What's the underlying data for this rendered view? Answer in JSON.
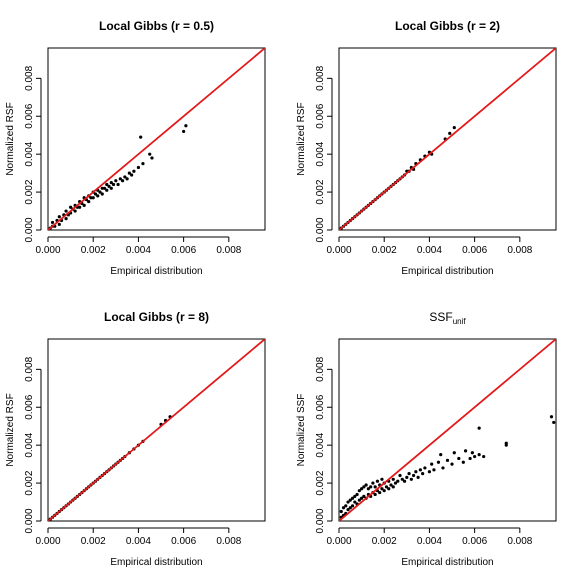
{
  "chart_data": [
    {
      "type": "scatter",
      "title": "Local Gibbs (r = 0.5)",
      "xlabel": "Empirical distribution",
      "ylabel": "Normalized RSF",
      "xlim": [
        0,
        0.0096
      ],
      "ylim": [
        0,
        0.0096
      ],
      "xticks": [
        "0.000",
        "0.002",
        "0.004",
        "0.006",
        "0.008"
      ],
      "yticks": [
        "0.000",
        "0.002",
        "0.004",
        "0.006",
        "0.008"
      ],
      "reference_line": {
        "slope": 1,
        "intercept": 0,
        "color": "#e31a1c"
      },
      "grid": false,
      "points": [
        [
          0.0001,
          0.0001
        ],
        [
          0.0002,
          0.0002
        ],
        [
          0.0002,
          0.0004
        ],
        [
          0.0003,
          0.0002
        ],
        [
          0.0004,
          0.0005
        ],
        [
          0.0005,
          0.0003
        ],
        [
          0.0005,
          0.0007
        ],
        [
          0.0006,
          0.0005
        ],
        [
          0.0007,
          0.0008
        ],
        [
          0.0008,
          0.0006
        ],
        [
          0.0008,
          0.001
        ],
        [
          0.0009,
          0.0008
        ],
        [
          0.001,
          0.0012
        ],
        [
          0.001,
          0.0009
        ],
        [
          0.0011,
          0.0011
        ],
        [
          0.0012,
          0.0013
        ],
        [
          0.0012,
          0.001
        ],
        [
          0.0013,
          0.0012
        ],
        [
          0.0014,
          0.0015
        ],
        [
          0.0014,
          0.0012
        ],
        [
          0.0015,
          0.0014
        ],
        [
          0.0016,
          0.0017
        ],
        [
          0.0016,
          0.0013
        ],
        [
          0.0017,
          0.0016
        ],
        [
          0.0018,
          0.0018
        ],
        [
          0.0018,
          0.0015
        ],
        [
          0.0019,
          0.0017
        ],
        [
          0.002,
          0.002
        ],
        [
          0.002,
          0.0017
        ],
        [
          0.0021,
          0.0019
        ],
        [
          0.0022,
          0.0021
        ],
        [
          0.0022,
          0.0018
        ],
        [
          0.0023,
          0.002
        ],
        [
          0.0024,
          0.0022
        ],
        [
          0.0024,
          0.0019
        ],
        [
          0.0025,
          0.0022
        ],
        [
          0.0026,
          0.0024
        ],
        [
          0.0026,
          0.0021
        ],
        [
          0.0027,
          0.0023
        ],
        [
          0.0028,
          0.0025
        ],
        [
          0.0028,
          0.0022
        ],
        [
          0.0029,
          0.0024
        ],
        [
          0.003,
          0.0026
        ],
        [
          0.0031,
          0.0024
        ],
        [
          0.0032,
          0.0027
        ],
        [
          0.0033,
          0.0026
        ],
        [
          0.0034,
          0.0028
        ],
        [
          0.0035,
          0.0027
        ],
        [
          0.0036,
          0.003
        ],
        [
          0.0037,
          0.0029
        ],
        [
          0.0038,
          0.0031
        ],
        [
          0.004,
          0.0033
        ],
        [
          0.0042,
          0.0035
        ],
        [
          0.0041,
          0.0049
        ],
        [
          0.0045,
          0.004
        ],
        [
          0.0046,
          0.0038
        ],
        [
          0.006,
          0.0052
        ],
        [
          0.0061,
          0.0055
        ]
      ]
    },
    {
      "type": "scatter",
      "title": "Local Gibbs (r = 2)",
      "xlabel": "Empirical distribution",
      "ylabel": "Normalized RSF",
      "xlim": [
        0,
        0.0096
      ],
      "ylim": [
        0,
        0.0096
      ],
      "xticks": [
        "0.000",
        "0.002",
        "0.004",
        "0.006",
        "0.008"
      ],
      "yticks": [
        "0.000",
        "0.002",
        "0.004",
        "0.006",
        "0.008"
      ],
      "reference_line": {
        "slope": 1,
        "intercept": 0,
        "color": "#e31a1c"
      },
      "grid": false,
      "points": [
        [
          0.0001,
          0.0001
        ],
        [
          0.0002,
          0.0002
        ],
        [
          0.0003,
          0.0003
        ],
        [
          0.0004,
          0.0004
        ],
        [
          0.0005,
          0.0005
        ],
        [
          0.0006,
          0.0006
        ],
        [
          0.0007,
          0.0007
        ],
        [
          0.0008,
          0.0008
        ],
        [
          0.0009,
          0.0009
        ],
        [
          0.001,
          0.001
        ],
        [
          0.0011,
          0.0011
        ],
        [
          0.0012,
          0.0012
        ],
        [
          0.0013,
          0.0013
        ],
        [
          0.0014,
          0.0014
        ],
        [
          0.0015,
          0.0015
        ],
        [
          0.0016,
          0.0016
        ],
        [
          0.0017,
          0.0017
        ],
        [
          0.0018,
          0.0018
        ],
        [
          0.0019,
          0.0019
        ],
        [
          0.002,
          0.002
        ],
        [
          0.0021,
          0.0021
        ],
        [
          0.0022,
          0.0022
        ],
        [
          0.0023,
          0.0023
        ],
        [
          0.0024,
          0.0024
        ],
        [
          0.0025,
          0.0025
        ],
        [
          0.0026,
          0.0026
        ],
        [
          0.0027,
          0.0027
        ],
        [
          0.0028,
          0.0028
        ],
        [
          0.0029,
          0.0029
        ],
        [
          0.003,
          0.0031
        ],
        [
          0.0031,
          0.0031
        ],
        [
          0.0032,
          0.0033
        ],
        [
          0.0033,
          0.0032
        ],
        [
          0.0034,
          0.0035
        ],
        [
          0.0036,
          0.0037
        ],
        [
          0.0038,
          0.0039
        ],
        [
          0.004,
          0.0041
        ],
        [
          0.0041,
          0.004
        ],
        [
          0.0047,
          0.0048
        ],
        [
          0.0049,
          0.0051
        ],
        [
          0.0051,
          0.0054
        ]
      ]
    },
    {
      "type": "scatter",
      "title": "Local Gibbs (r = 8)",
      "xlabel": "Empirical distribution",
      "ylabel": "Normalized RSF",
      "xlim": [
        0,
        0.0096
      ],
      "ylim": [
        0,
        0.0096
      ],
      "xticks": [
        "0.000",
        "0.002",
        "0.004",
        "0.006",
        "0.008"
      ],
      "yticks": [
        "0.000",
        "0.002",
        "0.004",
        "0.006",
        "0.008"
      ],
      "reference_line": {
        "slope": 1,
        "intercept": 0,
        "color": "#e31a1c"
      },
      "grid": false,
      "points": [
        [
          0.0001,
          0.0001
        ],
        [
          0.0002,
          0.0002
        ],
        [
          0.0003,
          0.0003
        ],
        [
          0.0004,
          0.0004
        ],
        [
          0.0005,
          0.0005
        ],
        [
          0.0006,
          0.0006
        ],
        [
          0.0007,
          0.0007
        ],
        [
          0.0008,
          0.0008
        ],
        [
          0.0009,
          0.0009
        ],
        [
          0.001,
          0.001
        ],
        [
          0.0011,
          0.0011
        ],
        [
          0.0012,
          0.0012
        ],
        [
          0.0013,
          0.0013
        ],
        [
          0.0014,
          0.0014
        ],
        [
          0.0015,
          0.0015
        ],
        [
          0.0016,
          0.0016
        ],
        [
          0.0017,
          0.0017
        ],
        [
          0.0018,
          0.0018
        ],
        [
          0.0019,
          0.0019
        ],
        [
          0.002,
          0.002
        ],
        [
          0.0021,
          0.0021
        ],
        [
          0.0022,
          0.0022
        ],
        [
          0.0023,
          0.0023
        ],
        [
          0.0024,
          0.0024
        ],
        [
          0.0025,
          0.0025
        ],
        [
          0.0026,
          0.0026
        ],
        [
          0.0027,
          0.0027
        ],
        [
          0.0028,
          0.0028
        ],
        [
          0.0029,
          0.0029
        ],
        [
          0.003,
          0.003
        ],
        [
          0.0031,
          0.0031
        ],
        [
          0.0032,
          0.0032
        ],
        [
          0.0033,
          0.0033
        ],
        [
          0.0034,
          0.0034
        ],
        [
          0.0036,
          0.0036
        ],
        [
          0.0038,
          0.0038
        ],
        [
          0.004,
          0.004
        ],
        [
          0.0042,
          0.0042
        ],
        [
          0.005,
          0.0051
        ],
        [
          0.0052,
          0.0053
        ],
        [
          0.0054,
          0.0055
        ]
      ]
    },
    {
      "type": "scatter",
      "title": "SSF",
      "title_subscript": "unif",
      "xlabel": "Empirical distribution",
      "ylabel": "Normalized SSF",
      "xlim": [
        0,
        0.0096
      ],
      "ylim": [
        0,
        0.0096
      ],
      "xticks": [
        "0.000",
        "0.002",
        "0.004",
        "0.006",
        "0.008"
      ],
      "yticks": [
        "0.000",
        "0.002",
        "0.004",
        "0.006",
        "0.008"
      ],
      "reference_line": {
        "slope": 1,
        "intercept": 0,
        "color": "#e31a1c"
      },
      "grid": false,
      "points": [
        [
          0.0001,
          0.0002
        ],
        [
          0.0001,
          0.0005
        ],
        [
          0.0002,
          0.0003
        ],
        [
          0.0002,
          0.0007
        ],
        [
          0.0003,
          0.0004
        ],
        [
          0.0003,
          0.0008
        ],
        [
          0.0004,
          0.0006
        ],
        [
          0.0004,
          0.001
        ],
        [
          0.0005,
          0.0007
        ],
        [
          0.0005,
          0.0011
        ],
        [
          0.0006,
          0.0008
        ],
        [
          0.0006,
          0.0012
        ],
        [
          0.0007,
          0.001
        ],
        [
          0.0007,
          0.0013
        ],
        [
          0.0008,
          0.0009
        ],
        [
          0.0008,
          0.0014
        ],
        [
          0.0009,
          0.0011
        ],
        [
          0.0009,
          0.0016
        ],
        [
          0.001,
          0.0012
        ],
        [
          0.001,
          0.0017
        ],
        [
          0.0011,
          0.0013
        ],
        [
          0.0011,
          0.0018
        ],
        [
          0.0012,
          0.0012
        ],
        [
          0.0012,
          0.0019
        ],
        [
          0.0013,
          0.0014
        ],
        [
          0.0013,
          0.0017
        ],
        [
          0.0014,
          0.0013
        ],
        [
          0.0014,
          0.0018
        ],
        [
          0.0015,
          0.0015
        ],
        [
          0.0015,
          0.002
        ],
        [
          0.0016,
          0.0014
        ],
        [
          0.0016,
          0.0018
        ],
        [
          0.0017,
          0.0016
        ],
        [
          0.0017,
          0.0021
        ],
        [
          0.0018,
          0.0015
        ],
        [
          0.0018,
          0.0019
        ],
        [
          0.0019,
          0.0017
        ],
        [
          0.0019,
          0.0022
        ],
        [
          0.002,
          0.0016
        ],
        [
          0.002,
          0.002
        ],
        [
          0.0021,
          0.0018
        ],
        [
          0.0022,
          0.0017
        ],
        [
          0.0022,
          0.0021
        ],
        [
          0.0023,
          0.0019
        ],
        [
          0.0024,
          0.0018
        ],
        [
          0.0024,
          0.0022
        ],
        [
          0.0025,
          0.002
        ],
        [
          0.0026,
          0.0021
        ],
        [
          0.0027,
          0.0024
        ],
        [
          0.0028,
          0.0022
        ],
        [
          0.0029,
          0.0021
        ],
        [
          0.003,
          0.0023
        ],
        [
          0.0031,
          0.0025
        ],
        [
          0.0032,
          0.0022
        ],
        [
          0.0033,
          0.0024
        ],
        [
          0.0034,
          0.0026
        ],
        [
          0.0035,
          0.0023
        ],
        [
          0.0036,
          0.0027
        ],
        [
          0.0037,
          0.0025
        ],
        [
          0.0038,
          0.0028
        ],
        [
          0.004,
          0.0026
        ],
        [
          0.0041,
          0.003
        ],
        [
          0.0042,
          0.0027
        ],
        [
          0.0044,
          0.0031
        ],
        [
          0.0045,
          0.0035
        ],
        [
          0.0046,
          0.0028
        ],
        [
          0.0048,
          0.0032
        ],
        [
          0.005,
          0.003
        ],
        [
          0.0051,
          0.0036
        ],
        [
          0.0053,
          0.0033
        ],
        [
          0.0055,
          0.0031
        ],
        [
          0.0056,
          0.0037
        ],
        [
          0.0058,
          0.0033
        ],
        [
          0.0059,
          0.0036
        ],
        [
          0.006,
          0.0034
        ],
        [
          0.0062,
          0.0049
        ],
        [
          0.0062,
          0.0035
        ],
        [
          0.0064,
          0.0034
        ],
        [
          0.0074,
          0.0041
        ],
        [
          0.0074,
          0.004
        ],
        [
          0.0094,
          0.0055
        ],
        [
          0.0095,
          0.0052
        ]
      ]
    }
  ]
}
